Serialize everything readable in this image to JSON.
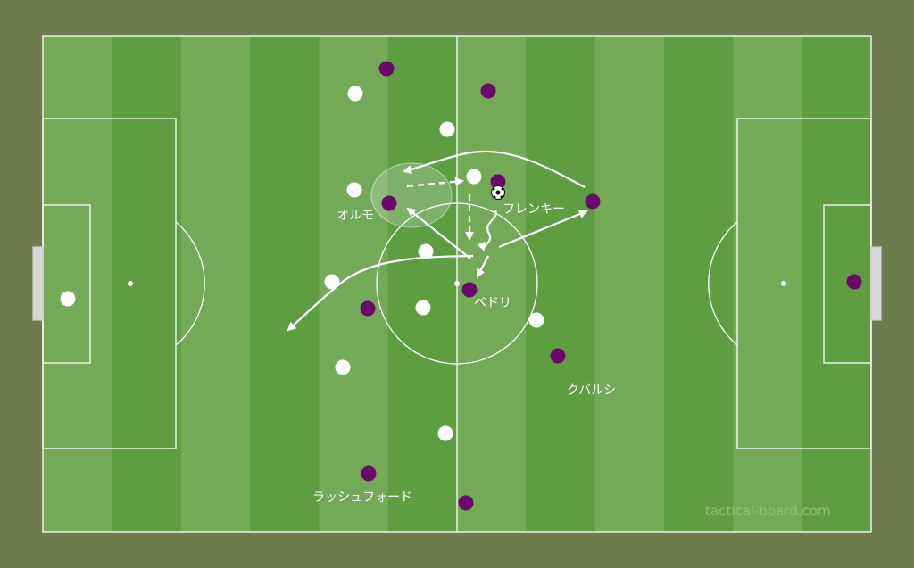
{
  "colors": {
    "background": "#6c7c4f",
    "stripe_light": "#74a957",
    "stripe_dark": "#5f9d43",
    "lines": "#ffffff",
    "team_home": "#ffffff",
    "team_away": "#6a0a6b"
  },
  "labels": {
    "olmo": "オルモ",
    "frenkie": "フレンキー",
    "pedri": "ペドリ",
    "cubarsi": "クバルシ",
    "rashford": "ラッシュフォード"
  },
  "watermark": "tactical-board.com",
  "teams": {
    "white_count": 11,
    "purple_count": 11
  },
  "ball_icon": "soccer-ball-icon"
}
